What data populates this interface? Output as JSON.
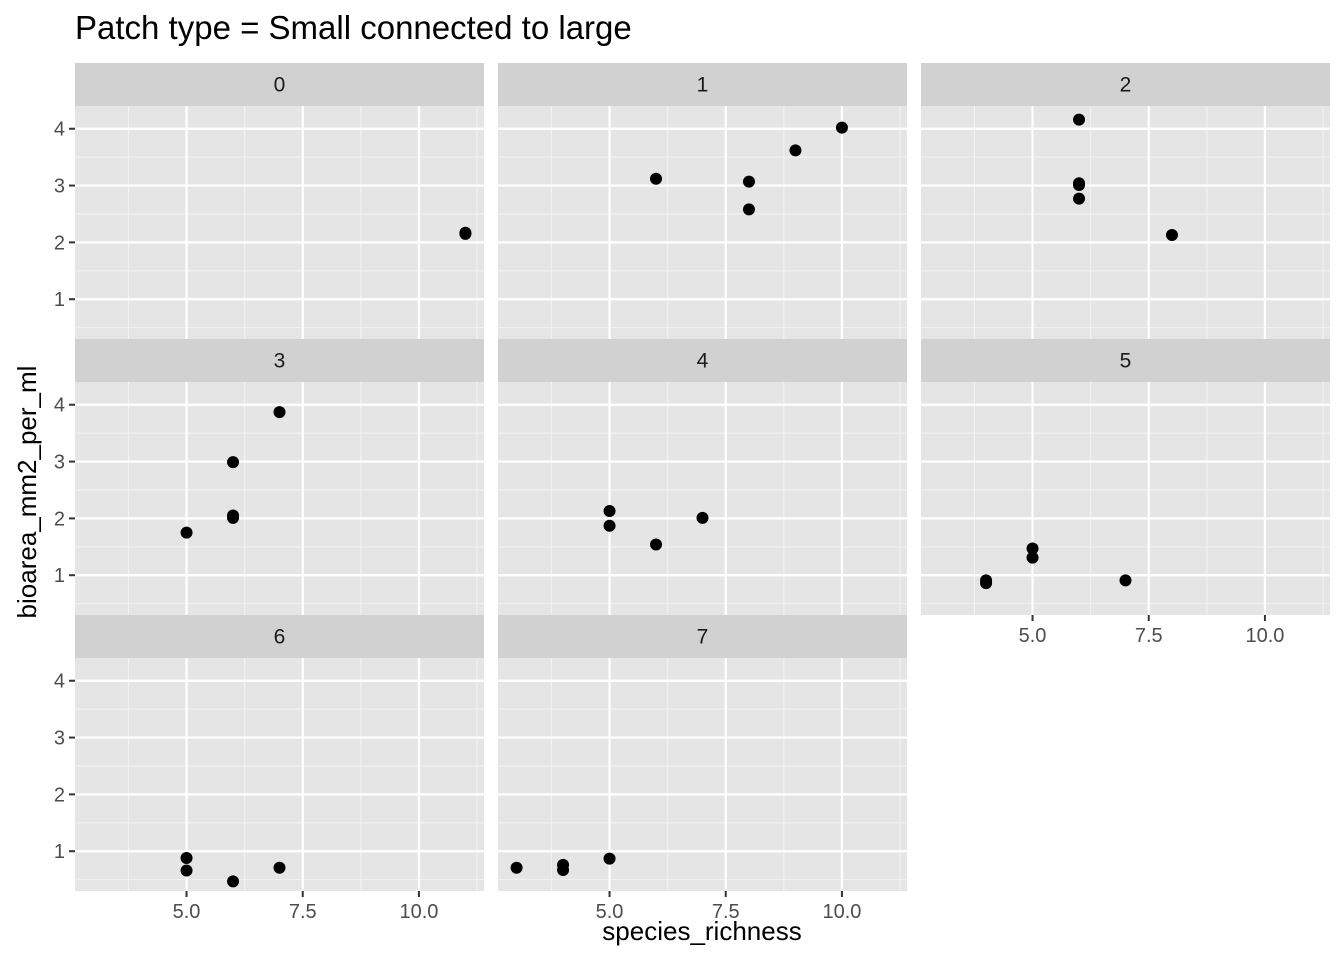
{
  "title": "Patch type = Small connected to large",
  "chart_data": {
    "type": "scatter",
    "title": "Patch type = Small connected to large",
    "xlabel": "species_richness",
    "ylabel": "bioarea_mm2_per_ml",
    "xlim": [
      2.6,
      11.4
    ],
    "ylim": [
      0.3,
      4.4
    ],
    "x_ticks": [
      "5.0",
      "7.5",
      "10.0"
    ],
    "x_tick_values": [
      5,
      7.5,
      10
    ],
    "y_ticks": [
      "1",
      "2",
      "3",
      "4"
    ],
    "y_tick_values": [
      1,
      2,
      3,
      4
    ],
    "grid": true,
    "point_color": "#000000",
    "panel_background": "#e5e5e5",
    "strip_background": "#d1d1d1",
    "facets": [
      {
        "label": "0",
        "points": [
          {
            "x": 11,
            "y": 2.15
          },
          {
            "x": 11,
            "y": 2.17
          }
        ]
      },
      {
        "label": "1",
        "points": [
          {
            "x": 6,
            "y": 3.12
          },
          {
            "x": 8,
            "y": 3.07
          },
          {
            "x": 8,
            "y": 2.58
          },
          {
            "x": 9,
            "y": 3.62
          },
          {
            "x": 10,
            "y": 4.02
          }
        ]
      },
      {
        "label": "2",
        "points": [
          {
            "x": 6,
            "y": 4.16
          },
          {
            "x": 6,
            "y": 3.04
          },
          {
            "x": 6,
            "y": 3.01
          },
          {
            "x": 6,
            "y": 2.77
          },
          {
            "x": 8,
            "y": 2.13
          }
        ]
      },
      {
        "label": "3",
        "points": [
          {
            "x": 5,
            "y": 1.75
          },
          {
            "x": 6,
            "y": 2.99
          },
          {
            "x": 6,
            "y": 2.05
          },
          {
            "x": 6,
            "y": 2.01
          },
          {
            "x": 7,
            "y": 3.87
          }
        ]
      },
      {
        "label": "4",
        "points": [
          {
            "x": 5,
            "y": 2.13
          },
          {
            "x": 5,
            "y": 1.87
          },
          {
            "x": 6,
            "y": 1.54
          },
          {
            "x": 7,
            "y": 2.01
          }
        ]
      },
      {
        "label": "5",
        "points": [
          {
            "x": 4,
            "y": 0.91
          },
          {
            "x": 4,
            "y": 0.86
          },
          {
            "x": 5,
            "y": 1.47
          },
          {
            "x": 5,
            "y": 1.31
          },
          {
            "x": 7,
            "y": 0.91
          }
        ]
      },
      {
        "label": "6",
        "points": [
          {
            "x": 5,
            "y": 0.88
          },
          {
            "x": 5,
            "y": 0.66
          },
          {
            "x": 6,
            "y": 0.47
          },
          {
            "x": 7,
            "y": 0.71
          }
        ]
      },
      {
        "label": "7",
        "points": [
          {
            "x": 3,
            "y": 0.71
          },
          {
            "x": 4,
            "y": 0.76
          },
          {
            "x": 4,
            "y": 0.67
          },
          {
            "x": 5,
            "y": 0.87
          }
        ]
      }
    ]
  }
}
